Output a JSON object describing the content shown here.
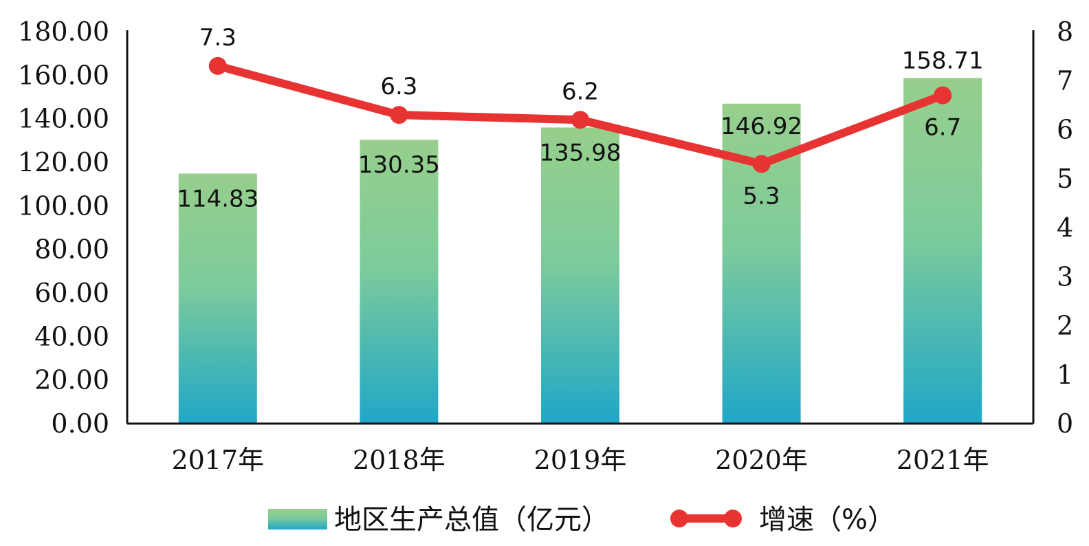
{
  "chart_data": {
    "type": "bar+line",
    "categories": [
      "2017年",
      "2018年",
      "2019年",
      "2020年",
      "2021年"
    ],
    "series": [
      {
        "name": "地区生产总值（亿元）",
        "type": "bar",
        "axis": "left",
        "values": [
          114.83,
          130.35,
          135.98,
          146.92,
          158.71
        ],
        "labels": [
          "114.83",
          "130.35",
          "135.98",
          "146.92",
          "158.71"
        ]
      },
      {
        "name": "增速（%）",
        "type": "line",
        "axis": "right",
        "values": [
          7.3,
          6.3,
          6.2,
          5.3,
          6.7
        ],
        "labels": [
          "7.3",
          "6.3",
          "6.2",
          "5.3",
          "6.7"
        ]
      }
    ],
    "y_left": {
      "ylim": [
        0,
        180
      ],
      "ticks": [
        0,
        20,
        40,
        60,
        80,
        100,
        120,
        140,
        160,
        180
      ],
      "tick_labels": [
        "0.00",
        "20.00",
        "40.00",
        "60.00",
        "80.00",
        "100.00",
        "120.00",
        "140.00",
        "160.00",
        "180.00"
      ]
    },
    "y_right": {
      "ylim": [
        0,
        8
      ],
      "ticks": [
        0,
        1,
        2,
        3,
        4,
        5,
        6,
        7,
        8
      ],
      "tick_labels": [
        "0",
        "1",
        "2",
        "3",
        "4",
        "5",
        "6",
        "7",
        "8"
      ]
    },
    "legend": {
      "position": "bottom"
    },
    "grid": false,
    "colors": {
      "bar_top": "#97cf8c",
      "bar_mid": "#7dcb9b",
      "bar_bottom": "#1fa7c7",
      "line": "#e83333",
      "axis": "#111111"
    }
  }
}
